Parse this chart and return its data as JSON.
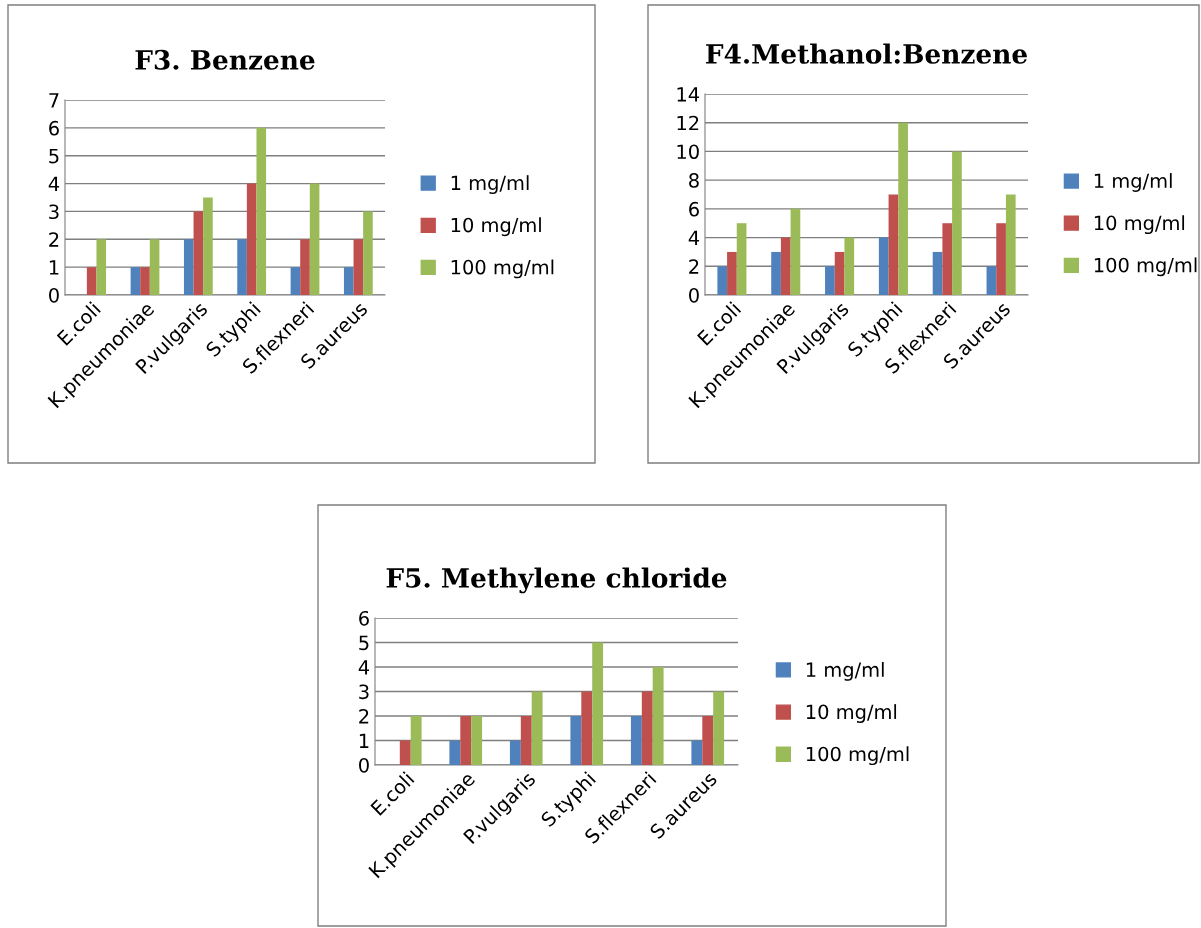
{
  "chart_data": [
    {
      "type": "bar",
      "title": "F3. Benzene",
      "categories": [
        "E.coli",
        "K.pneumoniae",
        "P.vulgaris",
        "S.typhi",
        "S.flexneri",
        "S.aureus"
      ],
      "series": [
        {
          "name": "1 mg/ml",
          "color": "#4f81bd",
          "values": [
            0,
            1,
            2,
            2,
            1,
            1
          ]
        },
        {
          "name": "10 mg/ml",
          "color": "#c0504d",
          "values": [
            1,
            1,
            3,
            4,
            2,
            2
          ]
        },
        {
          "name": "100 mg/ml",
          "color": "#9bbb59",
          "values": [
            2,
            2,
            3.5,
            6,
            4,
            3
          ]
        }
      ],
      "ylim": [
        0,
        7
      ],
      "yticks": [
        0,
        1,
        2,
        3,
        4,
        5,
        6,
        7
      ],
      "grid": "y",
      "legend": "right"
    },
    {
      "type": "bar",
      "title": "F4.Methanol:Benzene",
      "categories": [
        "E.coli",
        "K.pneumoniae",
        "P.vulgaris",
        "S.typhi",
        "S.flexneri",
        "S.aureus"
      ],
      "series": [
        {
          "name": "1 mg/ml",
          "color": "#4f81bd",
          "values": [
            2,
            3,
            2,
            4,
            3,
            2
          ]
        },
        {
          "name": "10 mg/ml",
          "color": "#c0504d",
          "values": [
            3,
            4,
            3,
            7,
            5,
            5
          ]
        },
        {
          "name": "100 mg/ml",
          "color": "#9bbb59",
          "values": [
            5,
            6,
            4,
            12,
            10,
            7
          ]
        }
      ],
      "ylim": [
        0,
        14
      ],
      "yticks": [
        0,
        2,
        4,
        6,
        8,
        10,
        12,
        14
      ],
      "grid": "y",
      "legend": "right"
    },
    {
      "type": "bar",
      "title": "F5. Methylene chloride",
      "categories": [
        "E.coli",
        "K.pneumoniae",
        "P.vulgaris",
        "S.typhi",
        "S.flexneri",
        "S.aureus"
      ],
      "series": [
        {
          "name": "1 mg/ml",
          "color": "#4f81bd",
          "values": [
            0,
            1,
            1,
            2,
            2,
            1
          ]
        },
        {
          "name": "10 mg/ml",
          "color": "#c0504d",
          "values": [
            1,
            2,
            2,
            3,
            3,
            2
          ]
        },
        {
          "name": "100 mg/ml",
          "color": "#9bbb59",
          "values": [
            2,
            2,
            3,
            5,
            4,
            3
          ]
        }
      ],
      "ylim": [
        0,
        6
      ],
      "yticks": [
        0,
        1,
        2,
        3,
        4,
        5,
        6
      ],
      "grid": "y",
      "legend": "right"
    }
  ]
}
